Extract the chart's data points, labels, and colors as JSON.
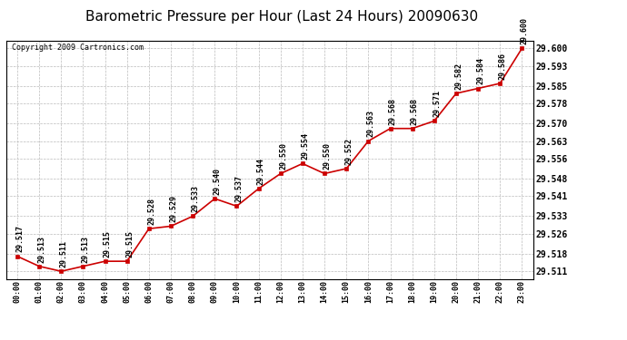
{
  "title": "Barometric Pressure per Hour (Last 24 Hours) 20090630",
  "copyright": "Copyright 2009 Cartronics.com",
  "hours": [
    "00:00",
    "01:00",
    "02:00",
    "03:00",
    "04:00",
    "05:00",
    "06:00",
    "07:00",
    "08:00",
    "09:00",
    "10:00",
    "11:00",
    "12:00",
    "13:00",
    "14:00",
    "15:00",
    "16:00",
    "17:00",
    "18:00",
    "19:00",
    "20:00",
    "21:00",
    "22:00",
    "23:00"
  ],
  "values": [
    29.517,
    29.513,
    29.511,
    29.513,
    29.515,
    29.515,
    29.528,
    29.529,
    29.533,
    29.54,
    29.537,
    29.544,
    29.55,
    29.554,
    29.55,
    29.552,
    29.563,
    29.568,
    29.568,
    29.571,
    29.582,
    29.584,
    29.586,
    29.6
  ],
  "ylim_min": 29.508,
  "ylim_max": 29.603,
  "ytick_values": [
    29.511,
    29.518,
    29.526,
    29.533,
    29.541,
    29.548,
    29.556,
    29.563,
    29.57,
    29.578,
    29.585,
    29.593,
    29.6
  ],
  "line_color": "#cc0000",
  "marker_color": "#cc0000",
  "bg_color": "#ffffff",
  "grid_color": "#bbbbbb",
  "title_fontsize": 11,
  "label_fontsize": 6,
  "annotation_fontsize": 6,
  "copyright_fontsize": 6,
  "tick_label_fontsize": 7
}
